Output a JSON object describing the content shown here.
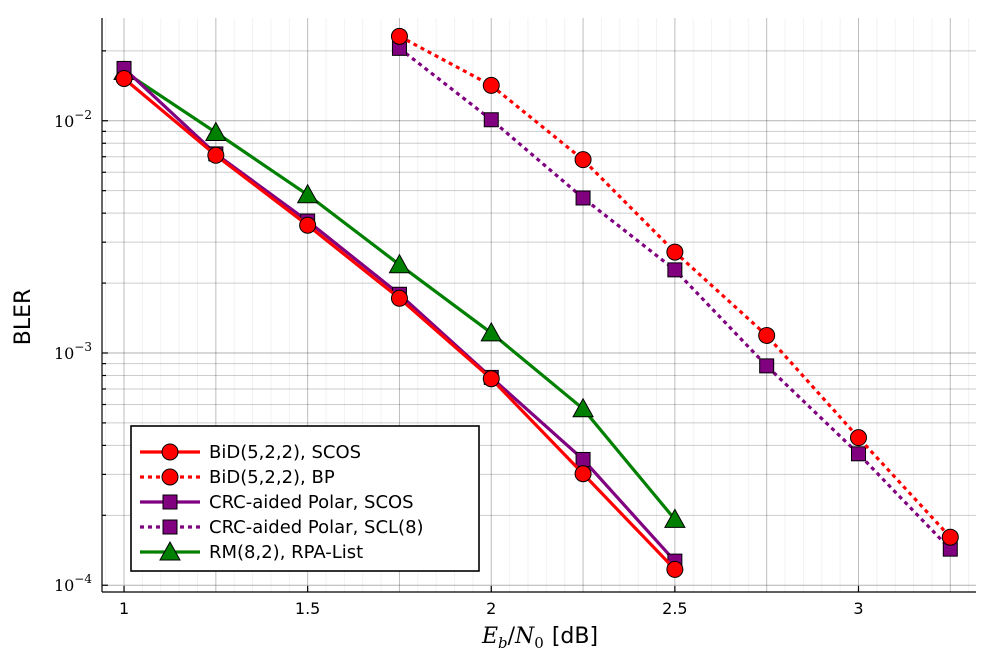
{
  "chart_data": {
    "type": "line",
    "xlabel": "E_b/N_0 [dB]",
    "xlabel_parts": {
      "e": "E",
      "b": "b",
      "slash": "/",
      "n": "N",
      "zero": "0",
      "unit": "[dB]"
    },
    "ylabel": "BLER",
    "xscale": "linear",
    "yscale": "log",
    "xlim": [
      0.94,
      3.32
    ],
    "ylim": [
      9.35e-05,
      0.0277
    ],
    "xticks": [
      1,
      1.5,
      2,
      2.5,
      3
    ],
    "xtick_labels": [
      "1",
      "1.5",
      "2",
      "2.5",
      "3"
    ],
    "yticks": [
      {
        "value": 0.01,
        "base": "10",
        "exp": "−2"
      },
      {
        "value": 0.001,
        "base": "10",
        "exp": "−3"
      },
      {
        "value": 0.0001,
        "base": "10",
        "exp": "−4"
      }
    ],
    "grid": true,
    "legend_position": "bottom-left",
    "series": [
      {
        "name": "BiD(5,2,2), SCOS",
        "color": "#ff0000",
        "style": "solid",
        "marker": "circle",
        "x": [
          1,
          1.25,
          1.5,
          1.75,
          2,
          2.25,
          2.5
        ],
        "y": [
          0.0152,
          0.0071,
          0.00355,
          0.00172,
          0.000775,
          0.000302,
          0.000117
        ]
      },
      {
        "name": "BiD(5,2,2), BP",
        "color": "#ff0000",
        "style": "dotted",
        "marker": "circle",
        "x": [
          1.75,
          2,
          2.25,
          2.5,
          2.75,
          3,
          3.25
        ],
        "y": [
          0.0231,
          0.0142,
          0.0068,
          0.00272,
          0.00119,
          0.000432,
          0.000161
        ]
      },
      {
        "name": "CRC-aided Polar, SCOS",
        "color": "#800080",
        "style": "solid",
        "marker": "square",
        "x": [
          1,
          1.25,
          1.5,
          1.75,
          2,
          2.25,
          2.5
        ],
        "y": [
          0.0168,
          0.0072,
          0.0037,
          0.00179,
          0.000785,
          0.000348,
          0.000127
        ]
      },
      {
        "name": "CRC-aided Polar, SCL(8)",
        "color": "#800080",
        "style": "dotted",
        "marker": "square",
        "x": [
          1.75,
          2,
          2.25,
          2.5,
          2.75,
          3,
          3.25
        ],
        "y": [
          0.0205,
          0.0101,
          0.00465,
          0.00228,
          0.00088,
          0.000368,
          0.000143
        ]
      },
      {
        "name": "RM(8,2), RPA-List",
        "color": "#008000",
        "style": "solid",
        "marker": "triangle",
        "x": [
          1,
          1.25,
          1.5,
          1.75,
          2,
          2.25,
          2.5
        ],
        "y": [
          0.0163,
          0.0089,
          0.0048,
          0.0024,
          0.00122,
          0.000575,
          0.000192
        ]
      }
    ]
  }
}
